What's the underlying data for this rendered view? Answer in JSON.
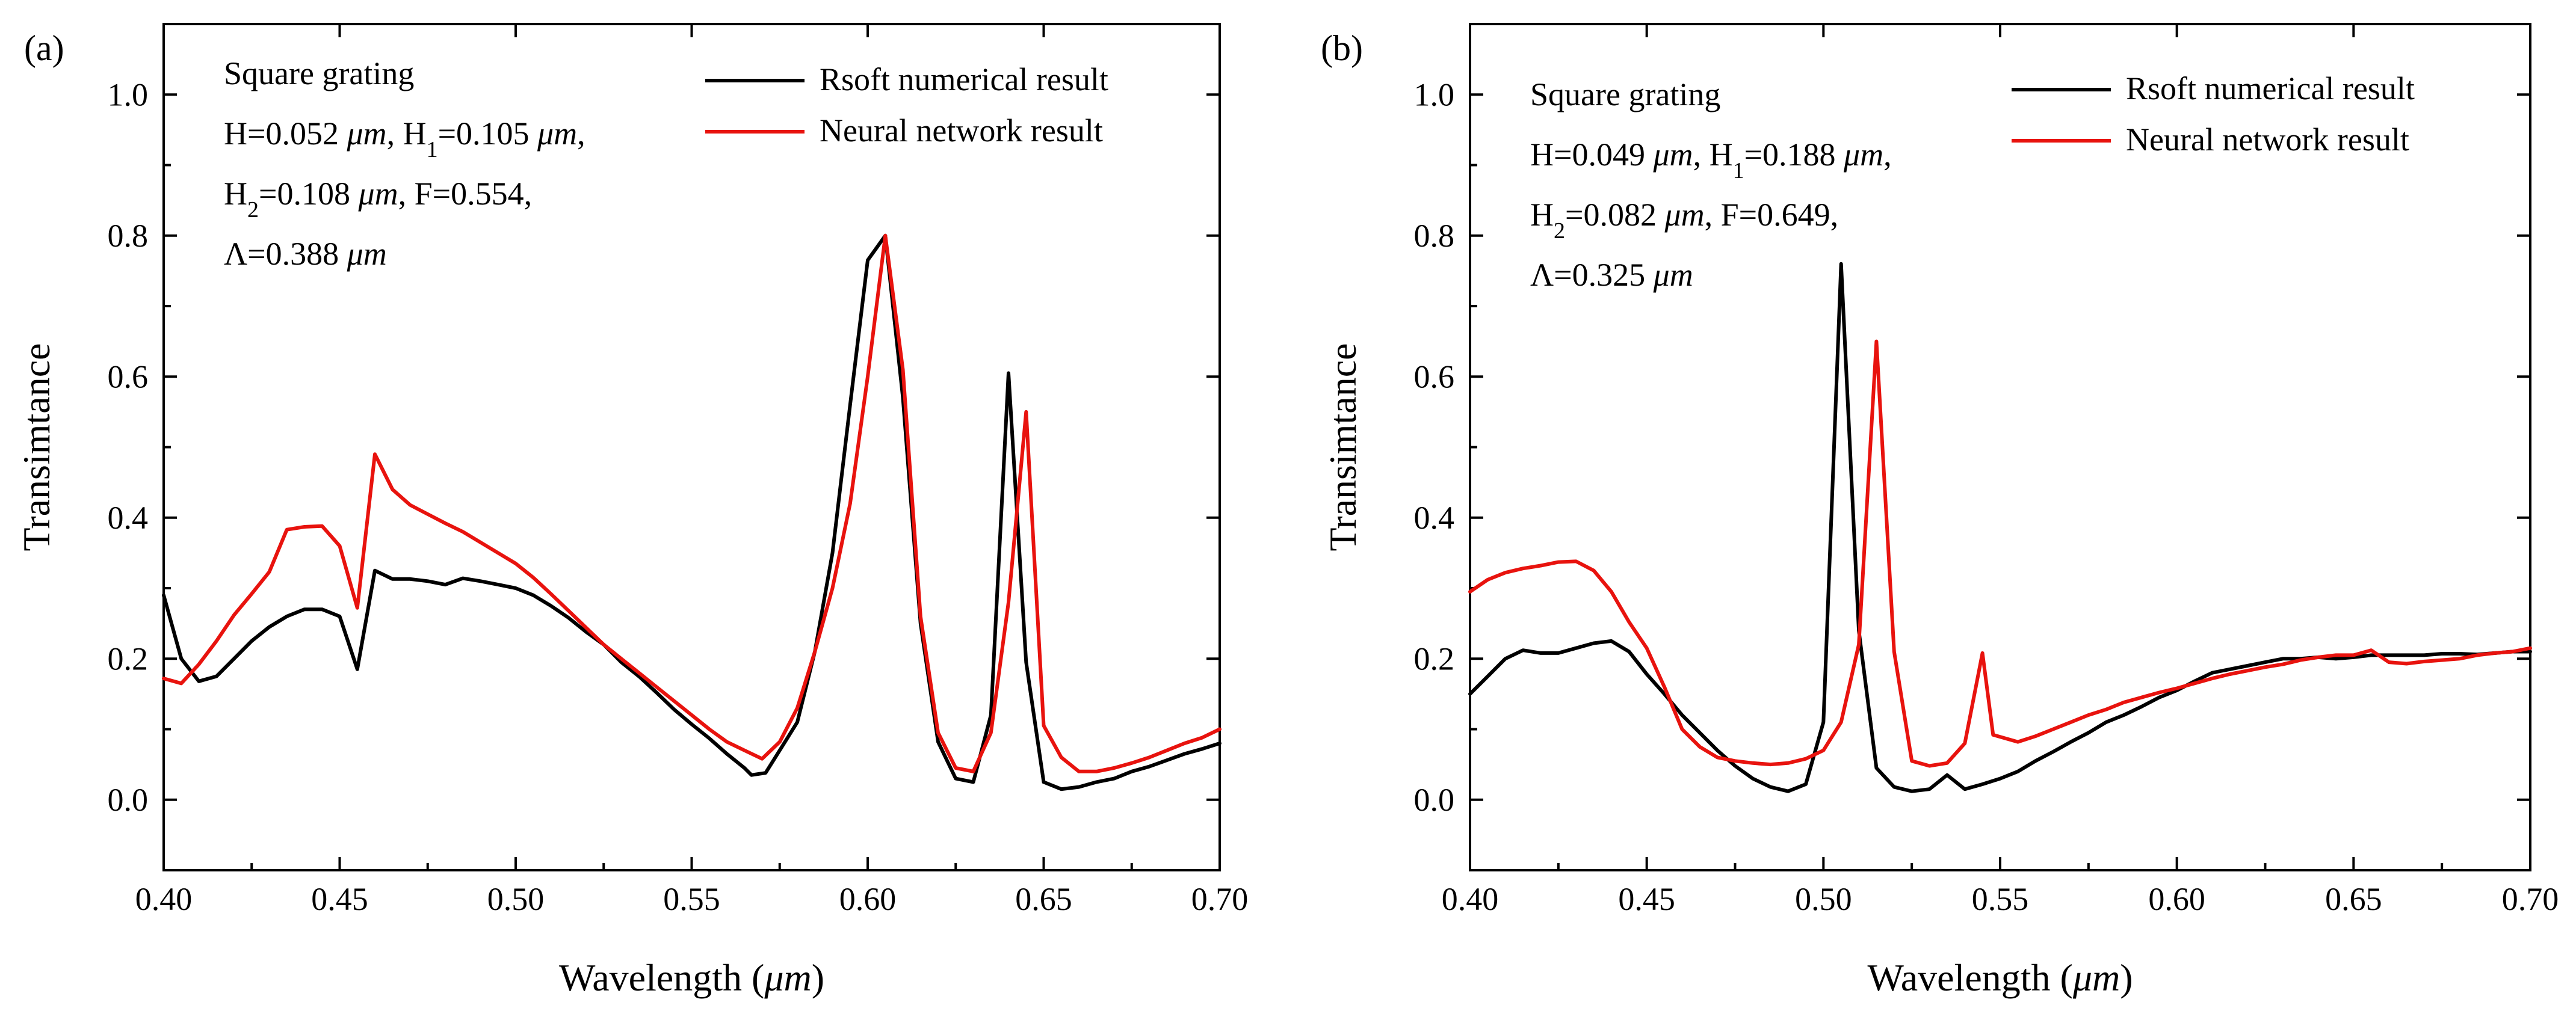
{
  "chart_data": [
    {
      "type": "line",
      "panel_label": "(a)",
      "xlabel": "Wavelength",
      "xunit": "μm",
      "ylabel": "Transimtance",
      "xlim": [
        0.4,
        0.7
      ],
      "ylim": [
        -0.1,
        1.1
      ],
      "xticks": [
        "0.40",
        "0.45",
        "0.50",
        "0.55",
        "0.60",
        "0.65",
        "0.70"
      ],
      "yticks": [
        "0.0",
        "0.2",
        "0.4",
        "0.6",
        "0.8",
        "1.0"
      ],
      "legend_position": "top-right",
      "annotation": {
        "title": "Square grating",
        "line1": {
          "a": "H=0.052 ",
          "a_unit": "μm",
          "b": ", H",
          "b_sub": "1",
          "c": "=0.105 ",
          "c_unit": "μm",
          "d": ","
        },
        "line2": {
          "a": "H",
          "a_sub": "2",
          "b": "=0.108 ",
          "b_unit": "μm",
          "c": ", F=0.554,"
        },
        "line3": {
          "a": "Λ=0.388 ",
          "a_unit": "μm"
        }
      },
      "series": [
        {
          "name": "Rsoft numerical result",
          "color": "#000000",
          "points": [
            [
              0.4,
              0.29
            ],
            [
              0.405,
              0.2
            ],
            [
              0.41,
              0.168
            ],
            [
              0.415,
              0.175
            ],
            [
              0.42,
              0.2
            ],
            [
              0.425,
              0.225
            ],
            [
              0.43,
              0.245
            ],
            [
              0.435,
              0.26
            ],
            [
              0.44,
              0.27
            ],
            [
              0.445,
              0.27
            ],
            [
              0.45,
              0.26
            ],
            [
              0.455,
              0.185
            ],
            [
              0.46,
              0.325
            ],
            [
              0.465,
              0.313
            ],
            [
              0.47,
              0.313
            ],
            [
              0.475,
              0.31
            ],
            [
              0.48,
              0.305
            ],
            [
              0.485,
              0.314
            ],
            [
              0.49,
              0.31
            ],
            [
              0.495,
              0.305
            ],
            [
              0.5,
              0.3
            ],
            [
              0.505,
              0.29
            ],
            [
              0.51,
              0.275
            ],
            [
              0.515,
              0.258
            ],
            [
              0.52,
              0.238
            ],
            [
              0.525,
              0.22
            ],
            [
              0.53,
              0.195
            ],
            [
              0.535,
              0.175
            ],
            [
              0.54,
              0.152
            ],
            [
              0.545,
              0.128
            ],
            [
              0.55,
              0.107
            ],
            [
              0.555,
              0.087
            ],
            [
              0.56,
              0.065
            ],
            [
              0.565,
              0.045
            ],
            [
              0.567,
              0.035
            ],
            [
              0.571,
              0.038
            ],
            [
              0.575,
              0.07
            ],
            [
              0.58,
              0.11
            ],
            [
              0.585,
              0.21
            ],
            [
              0.59,
              0.35
            ],
            [
              0.595,
              0.56
            ],
            [
              0.6,
              0.765
            ],
            [
              0.605,
              0.8
            ],
            [
              0.61,
              0.57
            ],
            [
              0.615,
              0.25
            ],
            [
              0.62,
              0.082
            ],
            [
              0.625,
              0.03
            ],
            [
              0.63,
              0.025
            ],
            [
              0.635,
              0.12
            ],
            [
              0.64,
              0.605
            ],
            [
              0.645,
              0.195
            ],
            [
              0.65,
              0.025
            ],
            [
              0.655,
              0.015
            ],
            [
              0.66,
              0.018
            ],
            [
              0.665,
              0.025
            ],
            [
              0.67,
              0.03
            ],
            [
              0.675,
              0.04
            ],
            [
              0.68,
              0.047
            ],
            [
              0.685,
              0.056
            ],
            [
              0.69,
              0.065
            ],
            [
              0.695,
              0.072
            ],
            [
              0.7,
              0.08
            ]
          ]
        },
        {
          "name": "Neural network result",
          "color": "#e8130e",
          "points": [
            [
              0.4,
              0.172
            ],
            [
              0.405,
              0.165
            ],
            [
              0.41,
              0.192
            ],
            [
              0.415,
              0.225
            ],
            [
              0.42,
              0.262
            ],
            [
              0.425,
              0.292
            ],
            [
              0.43,
              0.323
            ],
            [
              0.435,
              0.383
            ],
            [
              0.44,
              0.387
            ],
            [
              0.445,
              0.388
            ],
            [
              0.45,
              0.36
            ],
            [
              0.455,
              0.272
            ],
            [
              0.46,
              0.49
            ],
            [
              0.465,
              0.44
            ],
            [
              0.47,
              0.418
            ],
            [
              0.475,
              0.405
            ],
            [
              0.48,
              0.392
            ],
            [
              0.485,
              0.38
            ],
            [
              0.49,
              0.365
            ],
            [
              0.495,
              0.35
            ],
            [
              0.5,
              0.335
            ],
            [
              0.505,
              0.315
            ],
            [
              0.51,
              0.292
            ],
            [
              0.515,
              0.268
            ],
            [
              0.52,
              0.244
            ],
            [
              0.525,
              0.22
            ],
            [
              0.53,
              0.2
            ],
            [
              0.535,
              0.18
            ],
            [
              0.54,
              0.16
            ],
            [
              0.545,
              0.14
            ],
            [
              0.55,
              0.12
            ],
            [
              0.555,
              0.1
            ],
            [
              0.56,
              0.082
            ],
            [
              0.565,
              0.07
            ],
            [
              0.57,
              0.058
            ],
            [
              0.575,
              0.082
            ],
            [
              0.58,
              0.13
            ],
            [
              0.585,
              0.21
            ],
            [
              0.59,
              0.3
            ],
            [
              0.595,
              0.42
            ],
            [
              0.6,
              0.6
            ],
            [
              0.605,
              0.8
            ],
            [
              0.61,
              0.61
            ],
            [
              0.615,
              0.26
            ],
            [
              0.62,
              0.095
            ],
            [
              0.625,
              0.045
            ],
            [
              0.63,
              0.04
            ],
            [
              0.635,
              0.095
            ],
            [
              0.64,
              0.28
            ],
            [
              0.645,
              0.55
            ],
            [
              0.65,
              0.105
            ],
            [
              0.655,
              0.06
            ],
            [
              0.66,
              0.04
            ],
            [
              0.665,
              0.04
            ],
            [
              0.67,
              0.045
            ],
            [
              0.675,
              0.052
            ],
            [
              0.68,
              0.06
            ],
            [
              0.685,
              0.07
            ],
            [
              0.69,
              0.08
            ],
            [
              0.695,
              0.088
            ],
            [
              0.7,
              0.1
            ]
          ]
        }
      ]
    },
    {
      "type": "line",
      "panel_label": "(b)",
      "xlabel": "Wavelength",
      "xunit": "μm",
      "ylabel": "Transimtance",
      "xlim": [
        0.4,
        0.7
      ],
      "ylim": [
        -0.1,
        1.1
      ],
      "xticks": [
        "0.40",
        "0.45",
        "0.50",
        "0.55",
        "0.60",
        "0.65",
        "0.70"
      ],
      "yticks": [
        "0.0",
        "0.2",
        "0.4",
        "0.6",
        "0.8",
        "1.0"
      ],
      "legend_position": "top-right",
      "annotation": {
        "title": "Square grating",
        "line1": {
          "a": "H=0.049 ",
          "a_unit": "μm",
          "b": ", H",
          "b_sub": "1",
          "c": "=0.188 ",
          "c_unit": "μm",
          "d": ","
        },
        "line2": {
          "a": "H",
          "a_sub": "2",
          "b": "=0.082 ",
          "b_unit": "μm",
          "c": ", F=0.649,"
        },
        "line3": {
          "a": "Λ=0.325 ",
          "a_unit": "μm"
        }
      },
      "series": [
        {
          "name": "Rsoft numerical result",
          "color": "#000000",
          "points": [
            [
              0.4,
              0.15
            ],
            [
              0.405,
              0.175
            ],
            [
              0.41,
              0.2
            ],
            [
              0.415,
              0.212
            ],
            [
              0.42,
              0.208
            ],
            [
              0.425,
              0.208
            ],
            [
              0.43,
              0.215
            ],
            [
              0.435,
              0.222
            ],
            [
              0.44,
              0.225
            ],
            [
              0.445,
              0.21
            ],
            [
              0.45,
              0.178
            ],
            [
              0.455,
              0.15
            ],
            [
              0.46,
              0.12
            ],
            [
              0.465,
              0.095
            ],
            [
              0.47,
              0.07
            ],
            [
              0.475,
              0.048
            ],
            [
              0.48,
              0.03
            ],
            [
              0.485,
              0.018
            ],
            [
              0.49,
              0.012
            ],
            [
              0.495,
              0.022
            ],
            [
              0.5,
              0.11
            ],
            [
              0.505,
              0.76
            ],
            [
              0.51,
              0.24
            ],
            [
              0.515,
              0.045
            ],
            [
              0.52,
              0.018
            ],
            [
              0.525,
              0.012
            ],
            [
              0.53,
              0.015
            ],
            [
              0.535,
              0.035
            ],
            [
              0.54,
              0.015
            ],
            [
              0.545,
              0.022
            ],
            [
              0.55,
              0.03
            ],
            [
              0.555,
              0.04
            ],
            [
              0.56,
              0.055
            ],
            [
              0.565,
              0.068
            ],
            [
              0.57,
              0.082
            ],
            [
              0.575,
              0.095
            ],
            [
              0.58,
              0.11
            ],
            [
              0.585,
              0.12
            ],
            [
              0.59,
              0.132
            ],
            [
              0.595,
              0.145
            ],
            [
              0.6,
              0.155
            ],
            [
              0.605,
              0.168
            ],
            [
              0.61,
              0.18
            ],
            [
              0.615,
              0.185
            ],
            [
              0.62,
              0.19
            ],
            [
              0.625,
              0.195
            ],
            [
              0.63,
              0.2
            ],
            [
              0.635,
              0.2
            ],
            [
              0.64,
              0.202
            ],
            [
              0.645,
              0.2
            ],
            [
              0.65,
              0.202
            ],
            [
              0.655,
              0.205
            ],
            [
              0.66,
              0.205
            ],
            [
              0.665,
              0.205
            ],
            [
              0.67,
              0.205
            ],
            [
              0.675,
              0.207
            ],
            [
              0.68,
              0.207
            ],
            [
              0.685,
              0.206
            ],
            [
              0.69,
              0.208
            ],
            [
              0.695,
              0.21
            ],
            [
              0.7,
              0.21
            ]
          ]
        },
        {
          "name": "Neural network result",
          "color": "#e8130e",
          "points": [
            [
              0.4,
              0.295
            ],
            [
              0.405,
              0.312
            ],
            [
              0.41,
              0.322
            ],
            [
              0.415,
              0.328
            ],
            [
              0.42,
              0.332
            ],
            [
              0.425,
              0.337
            ],
            [
              0.43,
              0.338
            ],
            [
              0.435,
              0.325
            ],
            [
              0.44,
              0.295
            ],
            [
              0.445,
              0.252
            ],
            [
              0.45,
              0.215
            ],
            [
              0.455,
              0.16
            ],
            [
              0.46,
              0.1
            ],
            [
              0.465,
              0.075
            ],
            [
              0.47,
              0.06
            ],
            [
              0.475,
              0.055
            ],
            [
              0.48,
              0.052
            ],
            [
              0.485,
              0.05
            ],
            [
              0.49,
              0.052
            ],
            [
              0.495,
              0.058
            ],
            [
              0.5,
              0.07
            ],
            [
              0.505,
              0.11
            ],
            [
              0.51,
              0.22
            ],
            [
              0.515,
              0.65
            ],
            [
              0.52,
              0.21
            ],
            [
              0.525,
              0.055
            ],
            [
              0.53,
              0.048
            ],
            [
              0.535,
              0.052
            ],
            [
              0.54,
              0.08
            ],
            [
              0.545,
              0.208
            ],
            [
              0.548,
              0.092
            ],
            [
              0.555,
              0.082
            ],
            [
              0.56,
              0.09
            ],
            [
              0.565,
              0.1
            ],
            [
              0.57,
              0.11
            ],
            [
              0.575,
              0.12
            ],
            [
              0.58,
              0.128
            ],
            [
              0.585,
              0.138
            ],
            [
              0.59,
              0.145
            ],
            [
              0.595,
              0.152
            ],
            [
              0.6,
              0.158
            ],
            [
              0.605,
              0.165
            ],
            [
              0.61,
              0.172
            ],
            [
              0.615,
              0.178
            ],
            [
              0.62,
              0.183
            ],
            [
              0.625,
              0.188
            ],
            [
              0.63,
              0.192
            ],
            [
              0.635,
              0.198
            ],
            [
              0.64,
              0.202
            ],
            [
              0.645,
              0.205
            ],
            [
              0.65,
              0.205
            ],
            [
              0.655,
              0.212
            ],
            [
              0.66,
              0.195
            ],
            [
              0.665,
              0.193
            ],
            [
              0.67,
              0.196
            ],
            [
              0.675,
              0.198
            ],
            [
              0.68,
              0.2
            ],
            [
              0.685,
              0.205
            ],
            [
              0.69,
              0.208
            ],
            [
              0.695,
              0.21
            ],
            [
              0.7,
              0.215
            ]
          ]
        }
      ]
    }
  ]
}
